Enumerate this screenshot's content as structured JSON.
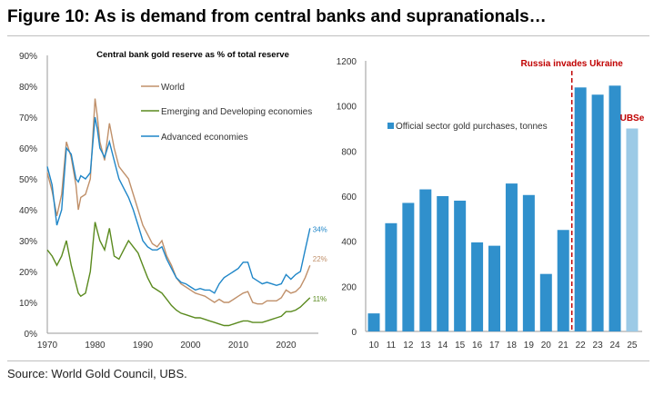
{
  "figure_title": "Figure 10: As is demand from central banks and supranationals…",
  "source": "Source: World Gold Council, UBS.",
  "colors": {
    "world": "#c0906a",
    "em": "#5a8a1e",
    "advanced": "#1f86c8",
    "bar": "#3090cc",
    "bar_est": "#9ccae6",
    "annotation": "#c00000"
  },
  "chart_data": [
    {
      "type": "line",
      "title": "Central bank gold reserve as % of total reserve",
      "xlabel": "",
      "ylabel": "",
      "xlim": [
        1970,
        2026
      ],
      "ylim": [
        0,
        90
      ],
      "x_ticks": [
        "1970",
        "1980",
        "1990",
        "2000",
        "2010",
        "2020"
      ],
      "y_ticks": [
        "0%",
        "10%",
        "20%",
        "30%",
        "40%",
        "50%",
        "60%",
        "70%",
        "80%",
        "90%"
      ],
      "legend_placement": "top-center",
      "x": [
        1970,
        1971,
        1972,
        1973,
        1974,
        1975,
        1976,
        1976.5,
        1977,
        1978,
        1979,
        1980,
        1980.5,
        1981,
        1982,
        1983,
        1984,
        1985,
        1986,
        1987,
        1988,
        1989,
        1990,
        1991,
        1992,
        1993,
        1994,
        1995,
        1996,
        1997,
        1998,
        1999,
        2000,
        2001,
        2002,
        2003,
        2004,
        2005,
        2006,
        2007,
        2008,
        2009,
        2010,
        2011,
        2012,
        2013,
        2014,
        2015,
        2016,
        2017,
        2018,
        2019,
        2020,
        2021,
        2022,
        2023,
        2024,
        2025
      ],
      "series": [
        {
          "name": "World",
          "color_key": "world",
          "end_label": "22%",
          "values": [
            52,
            46,
            38,
            45,
            62,
            57,
            48,
            40,
            44,
            45,
            50,
            76,
            70,
            62,
            56,
            68,
            60,
            54,
            52,
            50,
            45,
            40,
            35,
            32,
            29,
            28,
            30,
            25,
            22,
            18,
            16,
            15,
            14,
            13,
            12.5,
            12,
            11,
            10,
            11,
            10,
            10,
            11,
            12,
            13,
            13.5,
            10,
            9.5,
            9.5,
            10.5,
            10.5,
            10.5,
            11.5,
            14,
            13,
            13.5,
            15,
            18,
            22
          ]
        },
        {
          "name": "Emerging and Developing economies",
          "color_key": "em",
          "end_label": "11%",
          "values": [
            27,
            25,
            22,
            25,
            30,
            22,
            16,
            13,
            12,
            13,
            20,
            36,
            33,
            30,
            27,
            34,
            25,
            24,
            27,
            30,
            28,
            26,
            22,
            18,
            15,
            14,
            13,
            11,
            9,
            7.5,
            6.5,
            6,
            5.5,
            5,
            5,
            4.5,
            4,
            3.5,
            3,
            2.5,
            2.5,
            3,
            3.5,
            4,
            4,
            3.5,
            3.5,
            3.5,
            4,
            4.5,
            5,
            5.5,
            7,
            7,
            7.5,
            8.5,
            10,
            11.5
          ]
        },
        {
          "name": "Advanced economies",
          "color_key": "advanced",
          "end_label": "34%",
          "values": [
            54,
            48,
            35,
            40,
            60,
            58,
            50,
            49,
            51,
            50,
            52,
            70,
            66,
            60,
            57,
            62,
            56,
            50,
            47,
            44,
            40,
            35,
            30,
            28,
            27,
            27,
            28,
            24,
            21,
            18,
            16.5,
            16,
            15,
            14,
            14.5,
            14,
            14,
            13,
            16,
            18,
            19,
            20,
            21,
            23,
            23,
            18,
            17,
            16,
            16.5,
            16,
            15.5,
            16,
            19,
            17.5,
            19,
            20,
            27,
            34
          ]
        }
      ]
    },
    {
      "type": "bar",
      "title": "",
      "legend": "Official sector gold purchases, tonnes",
      "legend_placement": "middle-left",
      "categories": [
        "10",
        "11",
        "12",
        "13",
        "14",
        "15",
        "16",
        "17",
        "18",
        "19",
        "20",
        "21",
        "22",
        "23",
        "24",
        "25"
      ],
      "values": [
        80,
        480,
        570,
        630,
        600,
        580,
        395,
        380,
        656,
        605,
        255,
        450,
        1082,
        1050,
        1090,
        900
      ],
      "estimate_flags": [
        false,
        false,
        false,
        false,
        false,
        false,
        false,
        false,
        false,
        false,
        false,
        false,
        false,
        false,
        false,
        true
      ],
      "ylim": [
        0,
        1200
      ],
      "y_ticks": [
        "0",
        "200",
        "400",
        "600",
        "800",
        "1000",
        "1200"
      ],
      "annotations": {
        "event": "Russia invades Ukraine",
        "event_between": [
          "21",
          "22"
        ],
        "estimate": "UBSe"
      }
    }
  ]
}
